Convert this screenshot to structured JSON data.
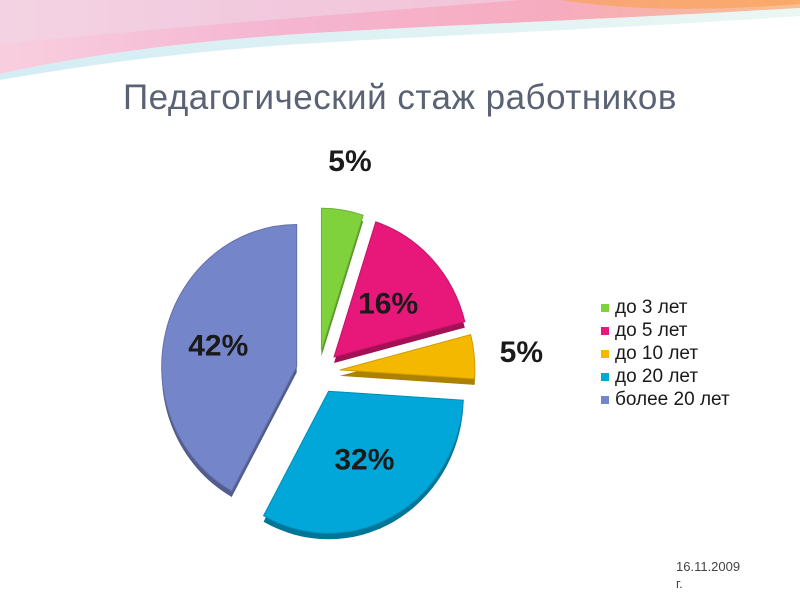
{
  "slide": {
    "title": "Педагогический стаж работников",
    "date_line1": "16.11.2009",
    "date_line2": "г."
  },
  "chart_data": {
    "type": "pie",
    "title": "",
    "categories": [
      "до 3 лет",
      "до 5 лет",
      "до 10 лет",
      "до 20 лет",
      "более 20 лет"
    ],
    "values": [
      5,
      16,
      5,
      32,
      42
    ],
    "data_labels": [
      "5%",
      "16%",
      "5%",
      "32%",
      "42%"
    ],
    "colors": [
      "#7fd23c",
      "#e8177a",
      "#f5b800",
      "#00a7d8",
      "#7585c9"
    ],
    "exploded": true,
    "style": "3d",
    "legend": "right"
  }
}
